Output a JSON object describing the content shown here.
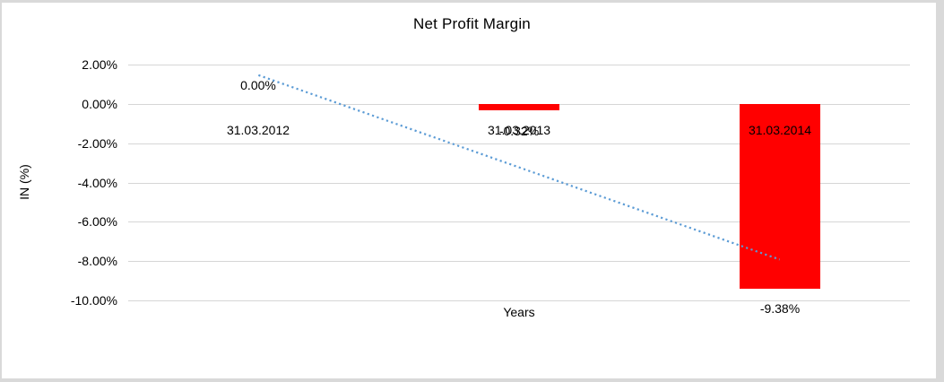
{
  "chart_data": {
    "type": "bar",
    "title": "Net Profit Margin",
    "xlabel": "Years",
    "ylabel": "IN (%)",
    "categories": [
      "31.03.2012",
      "31.03.2013",
      "31.03.2014"
    ],
    "series": [
      {
        "name": "Net Profit Margin",
        "values": [
          0.0,
          -0.32,
          -9.38
        ]
      }
    ],
    "data_labels": [
      "0.00%",
      "-0.32%",
      "-9.38%"
    ],
    "ylim": [
      -10,
      2
    ],
    "yticks": [
      2,
      0,
      -2,
      -4,
      -6,
      -8,
      -10
    ],
    "ytick_labels": [
      "2.00%",
      "0.00%",
      "-2.00%",
      "-4.00%",
      "-6.00%",
      "-8.00%",
      "-10.00%"
    ],
    "grid": true,
    "legend": "none",
    "bar_color": "#ff0000",
    "gridline_color": "#d6d6d6",
    "trendline": {
      "type": "linear",
      "style": "dotted",
      "color": "#5b9bd5",
      "from_category_index": 0,
      "to_category_index": 2,
      "y_start_value": 1.46,
      "y_end_value": -7.92
    }
  }
}
